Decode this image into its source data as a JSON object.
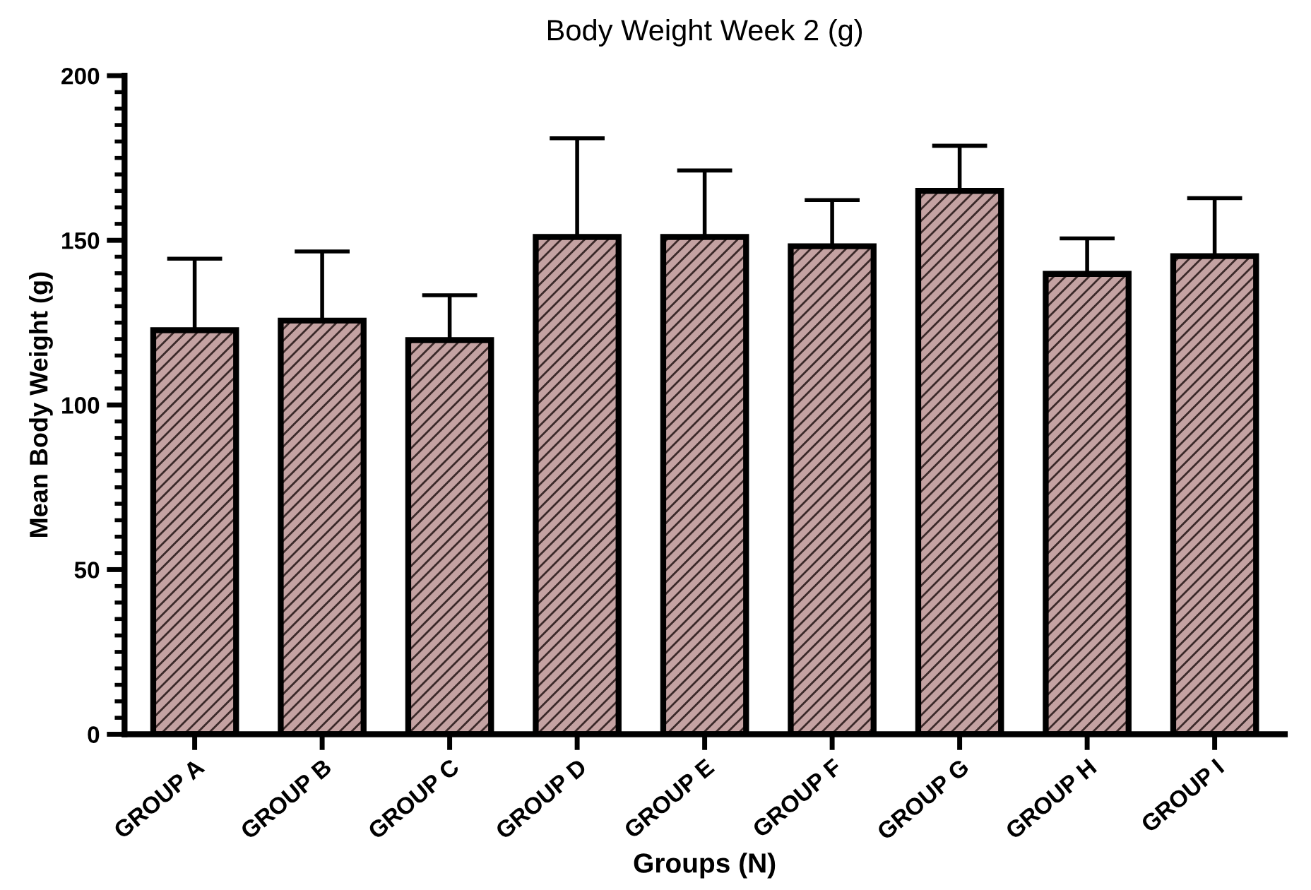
{
  "chart_data": {
    "type": "bar",
    "title": "Body Weight Week 2 (g)",
    "xlabel": "Groups (N)",
    "ylabel": "Mean Body Weight (g)",
    "categories": [
      "GROUP A",
      "GROUP B",
      "GROUP C",
      "GROUP D",
      "GROUP E",
      "GROUP F",
      "GROUP G",
      "GROUP H",
      "GROUP I"
    ],
    "values": [
      122.7,
      125.6,
      119.7,
      151,
      151,
      148.2,
      165,
      139.8,
      145.2
    ],
    "errors": [
      [
        122.7,
        144.4
      ],
      [
        125.6,
        146.6
      ],
      [
        119.7,
        133.3
      ],
      [
        151,
        181
      ],
      [
        151,
        171.2
      ],
      [
        148.2,
        162.2
      ],
      [
        165,
        178.7
      ],
      [
        139.8,
        150.6
      ],
      [
        145.2,
        162.8
      ]
    ],
    "color": "#c4a2a2",
    "ylim": [
      0,
      200
    ],
    "yticks": [
      0,
      50,
      100,
      150,
      200
    ],
    "grid": false,
    "legend": false
  }
}
